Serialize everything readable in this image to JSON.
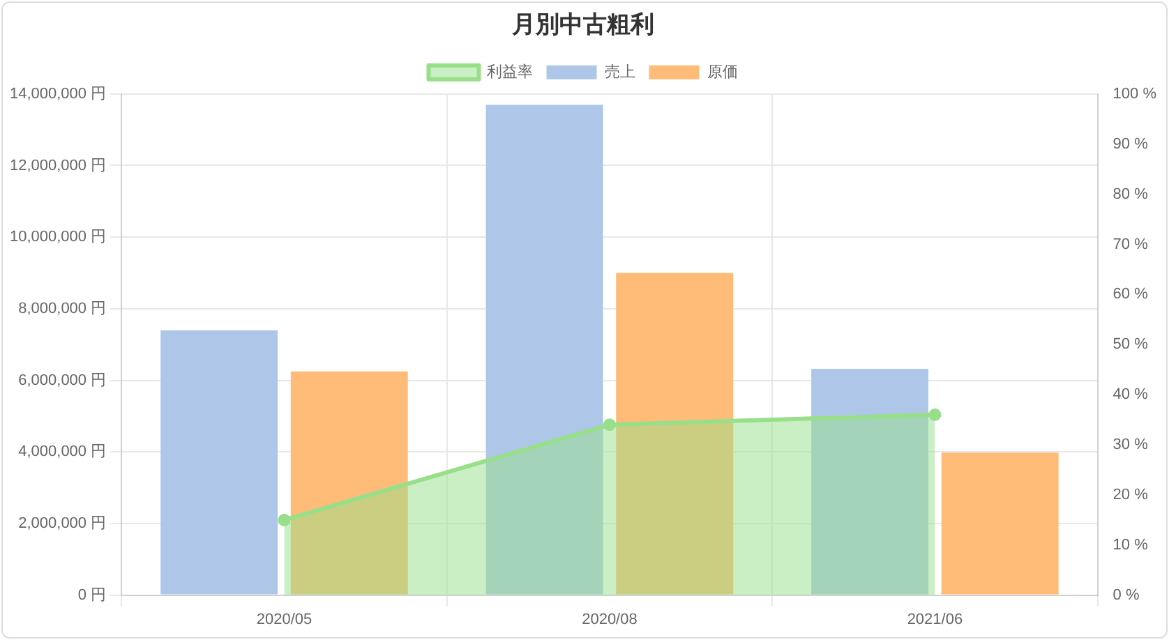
{
  "chart_data": {
    "type": "bar",
    "title": "月別中古粗利",
    "categories": [
      "2020/05",
      "2020/08",
      "2021/06"
    ],
    "series": [
      {
        "name": "売上",
        "color": "#aec7e8",
        "values": [
          7400000,
          13700000,
          6320000
        ]
      },
      {
        "name": "原価",
        "color": "#ffbb78",
        "values": [
          6250000,
          9000000,
          3980000
        ]
      },
      {
        "name": "利益率",
        "type": "area",
        "axis": "y2",
        "color": "#98df8a",
        "values": [
          15,
          34,
          36
        ]
      }
    ],
    "ylim": [
      0,
      14000000
    ],
    "yticks": [
      {
        "value": 0,
        "label": "0 円"
      },
      {
        "value": 2000000,
        "label": "2,000,000 円"
      },
      {
        "value": 4000000,
        "label": "4,000,000 円"
      },
      {
        "value": 6000000,
        "label": "6,000,000 円"
      },
      {
        "value": 8000000,
        "label": "8,000,000 円"
      },
      {
        "value": 10000000,
        "label": "10,000,000 円"
      },
      {
        "value": 12000000,
        "label": "12,000,000 円"
      },
      {
        "value": 14000000,
        "label": "14,000,000 円"
      }
    ],
    "y2lim": [
      0,
      100
    ],
    "y2ticks": [
      {
        "value": 0,
        "label": "0 %"
      },
      {
        "value": 10,
        "label": "10 %"
      },
      {
        "value": 20,
        "label": "20 %"
      },
      {
        "value": 30,
        "label": "30 %"
      },
      {
        "value": 40,
        "label": "40 %"
      },
      {
        "value": 50,
        "label": "50 %"
      },
      {
        "value": 60,
        "label": "60 %"
      },
      {
        "value": 70,
        "label": "70 %"
      },
      {
        "value": 80,
        "label": "80 %"
      },
      {
        "value": 90,
        "label": "90 %"
      },
      {
        "value": 100,
        "label": "100 %"
      }
    ],
    "grid": true,
    "legend": "top",
    "marker": "circle"
  }
}
